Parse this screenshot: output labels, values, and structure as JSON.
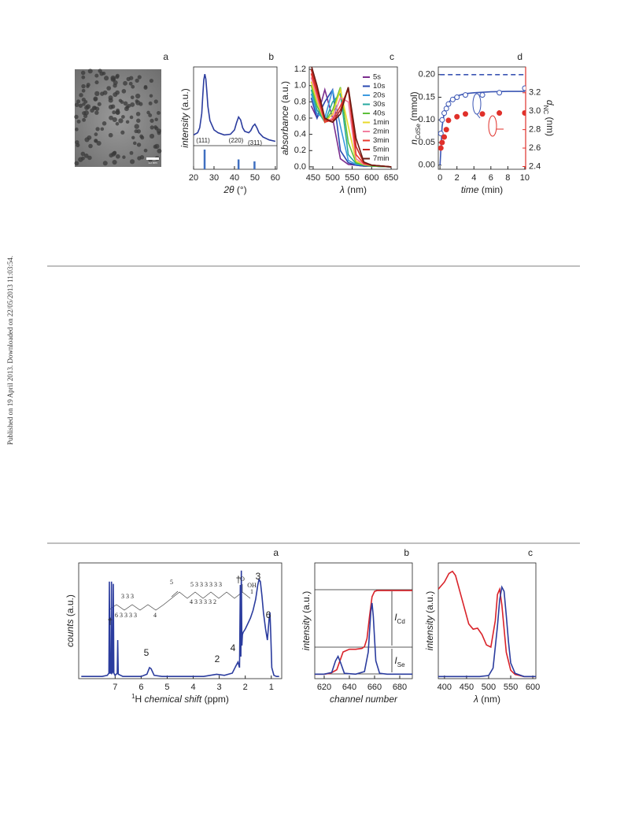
{
  "side_note": "Published on 19 April 2013. Downloaded on 22/05/2013 11:03:54.",
  "figure1": {
    "image_panel": {
      "label": "a",
      "scale_bar": "10 nm"
    },
    "charts": [
      {
        "type": "line",
        "label": "b",
        "xlim": [
          20,
          60.8
        ],
        "xticks": [
          20,
          30,
          40,
          50,
          60
        ],
        "ylim": [
          0,
          1.1
        ],
        "stick_ylim": [
          0,
          1.2
        ],
        "xlabel": [
          {
            "text": "2θ",
            "style": "italic"
          },
          {
            "text": " (°)"
          }
        ],
        "ylabel": [
          {
            "text": "intensity",
            "style": "italic"
          },
          {
            "text": " (a.u.)"
          }
        ],
        "x": [
          20,
          22,
          23,
          24,
          24.5,
          25,
          25.5,
          26,
          26.5,
          27,
          28,
          30,
          32,
          35,
          38,
          40,
          41,
          42,
          43,
          44,
          45,
          47,
          48,
          49,
          50,
          51,
          52,
          54,
          57,
          60
        ],
        "series": [
          {
            "color": "#2b3c9e",
            "style": "line",
            "values": [
              0.15,
              0.18,
              0.25,
              0.45,
              0.7,
              0.92,
              1.0,
              0.93,
              0.75,
              0.55,
              0.35,
              0.22,
              0.18,
              0.15,
              0.16,
              0.22,
              0.32,
              0.4,
              0.36,
              0.25,
              0.2,
              0.18,
              0.21,
              0.27,
              0.3,
              0.25,
              0.18,
              0.12,
              0.08,
              0.06
            ]
          }
        ],
        "sticks": {
          "color": "#3f6fc0",
          "x": [
            25.4,
            42,
            49.8
          ],
          "values": [
            1,
            0.5,
            0.4
          ]
        },
        "annotations": [
          [
            {
              "text": "(111)"
            }
          ],
          [
            {
              "text": "(220)"
            }
          ],
          [
            {
              "text": "(311)"
            }
          ]
        ]
      },
      {
        "type": "line",
        "label": "c",
        "xlim": [
          440,
          666
        ],
        "xticks": [
          450,
          500,
          550,
          600,
          650
        ],
        "ylim": [
          -0.03,
          1.23
        ],
        "yticks": [
          {
            "value": 0,
            "label": "0.0"
          },
          0.2,
          0.4,
          0.6,
          0.8,
          {
            "value": 1,
            "label": "1.0"
          },
          1.2
        ],
        "xlabel": [
          {
            "text": "λ",
            "style": "italic"
          },
          {
            "text": " (nm)"
          }
        ],
        "ylabel": [
          {
            "text": "absorbance",
            "style": "italic"
          },
          {
            "text": " (a.u.)"
          }
        ],
        "legend": "upper right",
        "x": [
          445,
          460,
          480,
          500,
          520,
          540,
          560,
          580,
          600,
          650
        ],
        "series": [
          {
            "name": "5s",
            "color": "#7b2d8e",
            "style": "line",
            "values": [
              0.75,
              0.6,
              0.95,
              0.6,
              0.1,
              0.03,
              0.02,
              0.01,
              0.01,
              0
            ]
          },
          {
            "name": "10s",
            "color": "#2a49b0",
            "style": "line",
            "values": [
              0.85,
              0.6,
              0.8,
              0.95,
              0.2,
              0.05,
              0.02,
              0.01,
              0.01,
              0
            ]
          },
          {
            "name": "20s",
            "color": "#3d9ae0",
            "style": "line",
            "values": [
              0.9,
              0.65,
              0.6,
              0.95,
              0.5,
              0.08,
              0.03,
              0.02,
              0.01,
              0
            ]
          },
          {
            "name": "30s",
            "color": "#27a9a0",
            "style": "line",
            "values": [
              0.95,
              0.7,
              0.55,
              0.8,
              0.9,
              0.15,
              0.04,
              0.02,
              0.01,
              0
            ]
          },
          {
            "name": "40s",
            "color": "#5cbf3a",
            "style": "line",
            "values": [
              1.0,
              0.75,
              0.55,
              0.7,
              0.98,
              0.3,
              0.05,
              0.02,
              0.01,
              0
            ]
          },
          {
            "name": "1min",
            "color": "#e8d92b",
            "style": "line",
            "values": [
              1.05,
              0.8,
              0.55,
              0.65,
              0.95,
              0.5,
              0.07,
              0.03,
              0.02,
              0
            ]
          },
          {
            "name": "2min",
            "color": "#f27fa0",
            "style": "line",
            "values": [
              1.1,
              0.85,
              0.55,
              0.6,
              0.85,
              0.8,
              0.1,
              0.03,
              0.02,
              0
            ]
          },
          {
            "name": "3min",
            "color": "#e83a2f",
            "style": "line",
            "values": [
              1.15,
              0.9,
              0.55,
              0.58,
              0.75,
              0.95,
              0.15,
              0.04,
              0.02,
              0
            ]
          },
          {
            "name": "5min",
            "color": "#c4251f",
            "style": "line",
            "values": [
              1.2,
              0.95,
              0.58,
              0.55,
              0.7,
              0.98,
              0.25,
              0.05,
              0.02,
              0
            ]
          },
          {
            "name": "7min",
            "color": "#6b1a12",
            "style": "line",
            "values": [
              1.25,
              1.0,
              0.6,
              0.55,
              0.65,
              0.98,
              0.35,
              0.06,
              0.02,
              0
            ]
          }
        ]
      },
      {
        "type": "scatter",
        "label": "d",
        "xlim": [
          -0.2,
          10.1
        ],
        "xticks": [
          0,
          2,
          4,
          6,
          8,
          10
        ],
        "ylim": [
          -0.009,
          0.217
        ],
        "yticks": [
          {
            "value": 0,
            "label": "0.00"
          },
          {
            "value": 0.05,
            "label": "0.05"
          },
          {
            "value": 0.1,
            "label": "0.10"
          },
          {
            "value": 0.15,
            "label": "0.15"
          },
          {
            "value": 0.2,
            "label": "0.20"
          }
        ],
        "y2lim": [
          2.37,
          3.48
        ],
        "y2ticks": [
          2.4,
          2.6,
          2.8,
          {
            "value": 3,
            "label": "3.0"
          },
          3.2
        ],
        "y2color": "#e0302a",
        "xlabel": [
          {
            "text": "time",
            "style": "italic"
          },
          {
            "text": " (min)"
          }
        ],
        "ylabel": [
          {
            "text": "n",
            "style": "italic"
          },
          {
            "text": "CdSe",
            "style": "sub"
          },
          {
            "text": " (mmol)"
          }
        ],
        "y2label": [
          {
            "text": "d",
            "style": "italic"
          },
          {
            "text": "NC",
            "style": "sub"
          },
          {
            "text": " (nm)"
          }
        ],
        "series": [
          {
            "color": "#3a55b4",
            "style": "dashed",
            "x": [
              0,
              10
            ],
            "values": [
              0.2,
              0.2
            ]
          },
          {
            "color": "#3a55b4",
            "style": "line",
            "x": [
              0,
              0.25,
              0.5,
              1,
              1.5,
              2,
              3,
              4,
              6,
              8,
              10
            ],
            "values": [
              0,
              0.085,
              0.115,
              0.138,
              0.148,
              0.153,
              0.158,
              0.16,
              0.162,
              0.163,
              0.163
            ]
          },
          {
            "color": "#3a55b4",
            "style": "open",
            "x": [
              0.1,
              0.25,
              0.5,
              0.75,
              1,
              1.5,
              2,
              3,
              5,
              7,
              10
            ],
            "values": [
              0.07,
              0.1,
              0.115,
              0.125,
              0.135,
              0.145,
              0.15,
              0.155,
              0.155,
              0.16,
              0.17
            ]
          },
          {
            "color": "#e0302a",
            "style": "filled",
            "axis": "y2",
            "x": [
              0.1,
              0.25,
              0.5,
              0.75,
              1,
              2,
              3,
              5,
              7,
              10
            ],
            "values": [
              2.6,
              2.66,
              2.72,
              2.8,
              2.9,
              2.94,
              2.97,
              2.97,
              2.98,
              2.98
            ]
          }
        ]
      }
    ]
  },
  "figure2": {
    "charts": [
      {
        "type": "line",
        "label": "a",
        "xlim": [
          8.4,
          0.6
        ],
        "xticks": [
          7,
          6,
          5,
          4,
          3,
          2,
          1
        ],
        "ylim": [
          0,
          1.05
        ],
        "xlabel": [
          {
            "text": "1",
            "style": "sup"
          },
          {
            "text": "H "
          },
          {
            "text": "chemical shift",
            "style": "italic"
          },
          {
            "text": " (ppm)"
          }
        ],
        "ylabel": [
          {
            "text": "counts",
            "style": "italic"
          },
          {
            "text": " (a.u.)"
          }
        ],
        "x": [
          8.3,
          7.5,
          7.3,
          7.24,
          7.22,
          7.2,
          7.16,
          7.14,
          7.12,
          7.09,
          7.07,
          7.05,
          7.0,
          6.92,
          6.9,
          6.88,
          6.7,
          6.0,
          5.78,
          5.68,
          5.62,
          5.5,
          5.2,
          4.5,
          3.6,
          3.1,
          2.8,
          2.5,
          2.35,
          2.28,
          2.22,
          2.19,
          2.17,
          2.15,
          2.13,
          2.11,
          2.08,
          2.0,
          1.9,
          1.8,
          1.7,
          1.6,
          1.52,
          1.47,
          1.42,
          1.36,
          1.3,
          1.22,
          1.15,
          1.08,
          1.05,
          1.02,
          0.98,
          0.9,
          0.8,
          0.7
        ],
        "series": [
          {
            "color": "#2b3c9e",
            "style": "line",
            "values": [
              0.02,
              0.02,
              0.03,
              0.05,
              0.88,
              0.05,
              0.05,
              0.88,
              0.05,
              0.06,
              0.86,
              0.05,
              0.03,
              0.05,
              0.35,
              0.04,
              0.02,
              0.02,
              0.04,
              0.1,
              0.09,
              0.03,
              0.02,
              0.02,
              0.02,
              0.04,
              0.03,
              0.05,
              0.12,
              0.15,
              0.1,
              0.85,
              0.2,
              0.98,
              0.3,
              0.4,
              0.42,
              0.45,
              0.5,
              0.55,
              0.62,
              0.72,
              0.85,
              0.9,
              0.88,
              0.75,
              0.6,
              0.45,
              0.35,
              0.55,
              0.6,
              0.4,
              0.1,
              0.03,
              0.02,
              0.02
            ]
          }
        ],
        "annotations": [
          [
            {
              "text": "†"
            }
          ],
          [
            {
              "text": "5"
            }
          ],
          [
            {
              "text": "2"
            }
          ],
          [
            {
              "text": "4"
            }
          ],
          [
            {
              "text": "†"
            }
          ],
          [
            {
              "text": "3"
            }
          ],
          [
            {
              "text": "6"
            }
          ]
        ],
        "structure_labels": [
          "5  3  3  3  3  3  3",
          "4  3  3  3  3  2",
          "3  3  3",
          "6  3  3  3  3",
          "4",
          "5",
          "O",
          "OH",
          "1"
        ]
      },
      {
        "type": "line",
        "label": "b",
        "xlim": [
          612.5,
          690
        ],
        "xticks": [
          620,
          640,
          660,
          680
        ],
        "ylim": [
          0,
          1.3
        ],
        "xlabel": [
          {
            "text": "channel number",
            "style": "italic"
          }
        ],
        "ylabel": [
          {
            "text": "intensity",
            "style": "italic"
          },
          {
            "text": " (a.u.)"
          }
        ],
        "series": [
          {
            "color": "#d9232a",
            "style": "line",
            "x": [
              612,
              620,
              625,
              630,
              635,
              640,
              645,
              650,
              652,
              654,
              656,
              658,
              660,
              662,
              665,
              670,
              680,
              690
            ],
            "values": [
              0.05,
              0.05,
              0.06,
              0.1,
              0.3,
              0.33,
              0.33,
              0.34,
              0.36,
              0.45,
              0.7,
              0.92,
              0.98,
              0.99,
              0.99,
              0.99,
              0.99,
              0.99
            ]
          },
          {
            "color": "#2b3c9e",
            "style": "line",
            "x": [
              612,
              620,
              626,
              629,
              631,
              633,
              636,
              645,
              652,
              655,
              657,
              658,
              659,
              661,
              664,
              670,
              680,
              690
            ],
            "values": [
              0.05,
              0.05,
              0.07,
              0.2,
              0.25,
              0.18,
              0.06,
              0.05,
              0.08,
              0.3,
              0.75,
              0.85,
              0.7,
              0.2,
              0.06,
              0.05,
              0.05,
              0.05
            ]
          }
        ],
        "annotations": [
          [
            {
              "text": "I",
              "style": "italic"
            },
            {
              "text": "Cd",
              "style": "sub"
            }
          ],
          [
            {
              "text": "I",
              "style": "italic"
            },
            {
              "text": "Se",
              "style": "sub"
            }
          ]
        ]
      },
      {
        "type": "line",
        "label": "c",
        "xlim": [
          386,
          607
        ],
        "xticks": [
          400,
          450,
          500,
          550,
          600
        ],
        "ylim": [
          0,
          1.1
        ],
        "xlabel": [
          {
            "text": "λ",
            "style": "italic"
          },
          {
            "text": " (nm)"
          }
        ],
        "ylabel": [
          {
            "text": "intensity",
            "style": "italic"
          },
          {
            "text": " (a.u.)"
          }
        ],
        "series": [
          {
            "color": "#d9232a",
            "style": "line",
            "x": [
              386,
              400,
              410,
              418,
              425,
              440,
              455,
              465,
              475,
              485,
              495,
              505,
              515,
              520,
              525,
              530,
              540,
              550,
              560,
              580,
              607
            ],
            "values": [
              0.85,
              0.92,
              1.0,
              1.02,
              0.98,
              0.75,
              0.52,
              0.47,
              0.48,
              0.42,
              0.32,
              0.3,
              0.55,
              0.8,
              0.85,
              0.7,
              0.25,
              0.08,
              0.04,
              0.02,
              0.02
            ]
          },
          {
            "color": "#2b3c9e",
            "style": "line",
            "x": [
              386,
              480,
              500,
              510,
              520,
              525,
              530,
              535,
              540,
              545,
              550,
              560,
              580,
              607
            ],
            "values": [
              0.02,
              0.02,
              0.03,
              0.1,
              0.5,
              0.75,
              0.87,
              0.83,
              0.6,
              0.35,
              0.15,
              0.05,
              0.02,
              0.02
            ]
          }
        ]
      }
    ]
  }
}
